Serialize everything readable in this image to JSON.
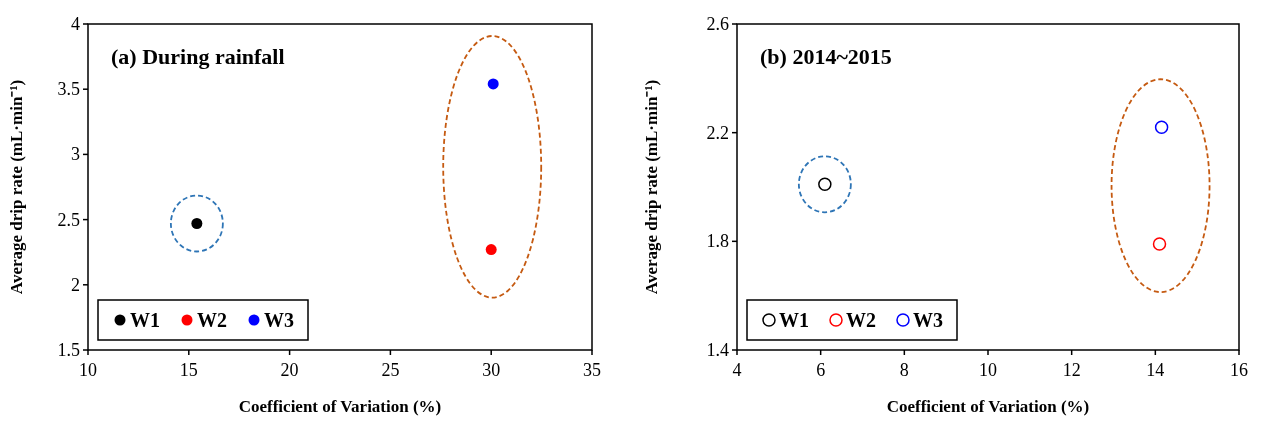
{
  "chart_data": [
    {
      "type": "scatter",
      "title": "(a) During rainfall",
      "xlabel": "Coefficient of Variation (%)",
      "ylabel": "Average drip rate (mL·min⁻¹)",
      "xlim": [
        10,
        35
      ],
      "xticks": [
        10,
        15,
        20,
        25,
        30,
        35
      ],
      "ylim": [
        1.5,
        4
      ],
      "yticks": [
        1.5,
        2,
        2.5,
        3,
        3.5,
        4
      ],
      "grid": false,
      "legend": "bottom left",
      "marker": "circle",
      "series": [
        {
          "name": "W1",
          "color": "#000000",
          "x": [
            15.4
          ],
          "values": [
            2.47
          ]
        },
        {
          "name": "W2",
          "color": "#ff0000",
          "x": [
            30.0
          ],
          "values": [
            2.27
          ]
        },
        {
          "name": "W3",
          "color": "#0000ff",
          "x": [
            30.1
          ],
          "values": [
            3.54
          ]
        }
      ]
    },
    {
      "type": "scatter",
      "title": "(b) 2014~2015",
      "xlabel": "Coefficient of Variation (%)",
      "ylabel": "Average drip rate (mL·min⁻¹)",
      "xlim": [
        4,
        16
      ],
      "xticks": [
        4,
        6,
        8,
        10,
        12,
        14,
        16
      ],
      "ylim": [
        1.4,
        2.6
      ],
      "yticks": [
        1.4,
        1.8,
        2.2,
        2.6
      ],
      "grid": false,
      "legend": "bottom left",
      "marker": "circle",
      "series": [
        {
          "name": "W1",
          "color": "#000000",
          "x": [
            6.1
          ],
          "values": [
            2.01
          ]
        },
        {
          "name": "W2",
          "color": "#ff0000",
          "x": [
            14.1
          ],
          "values": [
            1.79
          ]
        },
        {
          "name": "W3",
          "color": "#0000ff",
          "x": [
            14.15
          ],
          "values": [
            2.22
          ]
        }
      ]
    }
  ]
}
